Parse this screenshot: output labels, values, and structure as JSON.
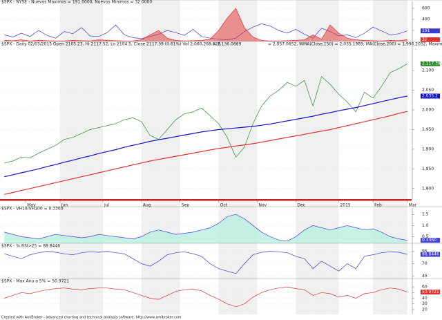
{
  "chart_data": [
    {
      "type": "line",
      "title": "$SPX - NYSE - Nuevos Maximos = 191.0000, Nuevos Minimos = 32.0000",
      "ylim": [
        0,
        650
      ],
      "yticks": [
        200,
        400,
        600
      ],
      "series": [
        {
          "color": "#3a3acc",
          "values": [
            120,
            80,
            150,
            90,
            200,
            110,
            60,
            180,
            140,
            250,
            100,
            90,
            160,
            300,
            120,
            70,
            50,
            90,
            130,
            200,
            160,
            110,
            220,
            90,
            60,
            40,
            30,
            60,
            180,
            260,
            320,
            280,
            200,
            150,
            220,
            130,
            60,
            240,
            180,
            100,
            120,
            70,
            150,
            260,
            190,
            120,
            140,
            191
          ],
          "last_label": "191"
        },
        {
          "color": "#e03030",
          "fill": true,
          "values": [
            20,
            15,
            30,
            10,
            20,
            15,
            10,
            10,
            20,
            15,
            10,
            30,
            20,
            15,
            10,
            10,
            30,
            120,
            200,
            60,
            20,
            10,
            15,
            20,
            40,
            200,
            420,
            600,
            250,
            80,
            20,
            10,
            10,
            15,
            20,
            30,
            120,
            40,
            300,
            150,
            60,
            30,
            20,
            15,
            10,
            20,
            15,
            32
          ],
          "last_label": "32"
        }
      ]
    },
    {
      "type": "line",
      "title": "$SPX - Daily 02/03/2015 Open 2105.23, Hi 2117.52, Lo 2104.5, Close 2117.39 (0.61%) Vol 2,060,268,928",
      "annotations": [
        "= 2,136.0889",
        "= 2,057.0652, WMA(Close,150) = 2,035.1989, MA(Close,200) = 1,996.2032, Maximo = 2."
      ],
      "xlim": [
        0,
        48
      ],
      "xticks": [
        {
          "value": 3,
          "label": "May"
        },
        {
          "value": 7,
          "label": "Jun"
        },
        {
          "value": 12,
          "label": "Jul"
        },
        {
          "value": 16.5,
          "label": "Aug"
        },
        {
          "value": 21,
          "label": "Sep"
        },
        {
          "value": 25.5,
          "label": "Oct"
        },
        {
          "value": 30,
          "label": "Nov"
        },
        {
          "value": 34.5,
          "label": "Dec"
        },
        {
          "value": 39.5,
          "label": "2015"
        },
        {
          "value": 43.5,
          "label": "Feb"
        },
        {
          "value": 47.5,
          "label": "Mar"
        }
      ],
      "ylim": [
        1775,
        2160
      ],
      "yticks": [
        {
          "value": 1800,
          "label": "1,800"
        },
        {
          "value": 1850,
          "label": "1,850"
        },
        {
          "value": 1900,
          "label": "1,900"
        },
        {
          "value": 1950,
          "label": "1,950"
        },
        {
          "value": 2000,
          "label": "2,000"
        },
        {
          "value": 2050,
          "label": "2,050"
        },
        {
          "value": 2100,
          "label": "2,100"
        }
      ],
      "series": [
        {
          "color": "#2a8a2a",
          "values": [
            1865,
            1870,
            1880,
            1878,
            1890,
            1900,
            1910,
            1925,
            1930,
            1940,
            1950,
            1955,
            1960,
            1965,
            1975,
            1980,
            1970,
            1935,
            1925,
            1950,
            1975,
            1990,
            1995,
            2005,
            1985,
            1965,
            1930,
            1880,
            1905,
            1965,
            2010,
            2035,
            2050,
            2070,
            2060,
            2075,
            2010,
            2085,
            2065,
            2040,
            2020,
            1995,
            2045,
            2030,
            2060,
            2095,
            2105,
            2117.39
          ],
          "last_label": "2,117.39"
        },
        {
          "color": "#1010c8",
          "values": [
            1830,
            1835,
            1840,
            1845,
            1850,
            1856,
            1861,
            1867,
            1872,
            1878,
            1883,
            1889,
            1894,
            1899,
            1905,
            1910,
            1915,
            1920,
            1924,
            1928,
            1932,
            1936,
            1940,
            1944,
            1947,
            1950,
            1952,
            1954,
            1956,
            1958,
            1961,
            1964,
            1968,
            1972,
            1976,
            1980,
            1984,
            1989,
            1993,
            1998,
            2002,
            2006,
            2011,
            2016,
            2021,
            2026,
            2031,
            2035.1989
          ],
          "last_label": "2,035.2"
        },
        {
          "color": "#e03030",
          "values": [
            1785,
            1790,
            1795,
            1800,
            1805,
            1810,
            1815,
            1820,
            1825,
            1830,
            1835,
            1840,
            1845,
            1850,
            1855,
            1860,
            1865,
            1870,
            1874,
            1878,
            1882,
            1886,
            1890,
            1894,
            1898,
            1902,
            1905,
            1908,
            1911,
            1914,
            1918,
            1922,
            1926,
            1930,
            1934,
            1938,
            1942,
            1946,
            1950,
            1955,
            1960,
            1965,
            1970,
            1975,
            1980,
            1985,
            1991,
            1996.2032
          ]
        }
      ]
    },
    {
      "type": "line",
      "title": "$SPX - VH10/VH100 = 0.3360",
      "ylim": [
        0.2,
        1.6
      ],
      "yticks": [
        0.5,
        {
          "value": 1,
          "label": "1.0"
        },
        1.5
      ],
      "series": [
        {
          "color": "#4444dd",
          "fill": true,
          "fill_color": "#b8f0e0",
          "values": [
            0.7,
            0.6,
            0.5,
            0.45,
            0.4,
            0.5,
            0.6,
            0.55,
            0.5,
            0.45,
            0.5,
            0.6,
            0.55,
            0.5,
            0.45,
            0.4,
            0.5,
            0.7,
            0.8,
            0.7,
            0.6,
            0.65,
            0.7,
            0.8,
            0.9,
            1.1,
            1.4,
            1.5,
            1.3,
            1.0,
            0.7,
            0.5,
            0.35,
            0.3,
            0.5,
            0.8,
            1.0,
            0.9,
            0.8,
            0.9,
            1.0,
            0.9,
            0.8,
            0.85,
            0.7,
            0.5,
            0.4,
            0.336
          ],
          "last_label": "0.3360"
        }
      ]
    },
    {
      "type": "line",
      "title": "$SPX - % RSI>25 = 88.8446",
      "ylim": [
        40,
        100
      ],
      "yticks": [
        45,
        70,
        95
      ],
      "series": [
        {
          "color": "#3a3acc",
          "values": [
            90,
            85,
            80,
            88,
            92,
            95,
            93,
            90,
            88,
            92,
            94,
            93,
            95,
            92,
            90,
            80,
            70,
            65,
            75,
            88,
            92,
            94,
            90,
            85,
            70,
            60,
            55,
            50,
            70,
            88,
            93,
            95,
            94,
            92,
            85,
            80,
            60,
            75,
            65,
            55,
            70,
            60,
            85,
            88,
            92,
            94,
            93,
            88.8446
          ],
          "last_label": "88.8446"
        }
      ]
    },
    {
      "type": "line",
      "title": "$SPX - Max Anu a 5% = 50.9721",
      "ylim": [
        15,
        65
      ],
      "yticks": [
        20,
        30,
        40,
        50,
        60
      ],
      "series": [
        {
          "color": "#e03030",
          "values": [
            40,
            45,
            50,
            48,
            52,
            55,
            57,
            58,
            56,
            55,
            57,
            58,
            58,
            56,
            55,
            50,
            45,
            40,
            38,
            45,
            52,
            55,
            56,
            53,
            45,
            38,
            30,
            25,
            30,
            42,
            50,
            55,
            58,
            60,
            57,
            55,
            45,
            50,
            48,
            42,
            45,
            40,
            48,
            50,
            55,
            58,
            56,
            50.9721
          ],
          "last_label": "50.9721"
        }
      ]
    }
  ],
  "footer": "Created with AmiBroker - advanced charting and technical analysis software. http://www.amibroker.com"
}
